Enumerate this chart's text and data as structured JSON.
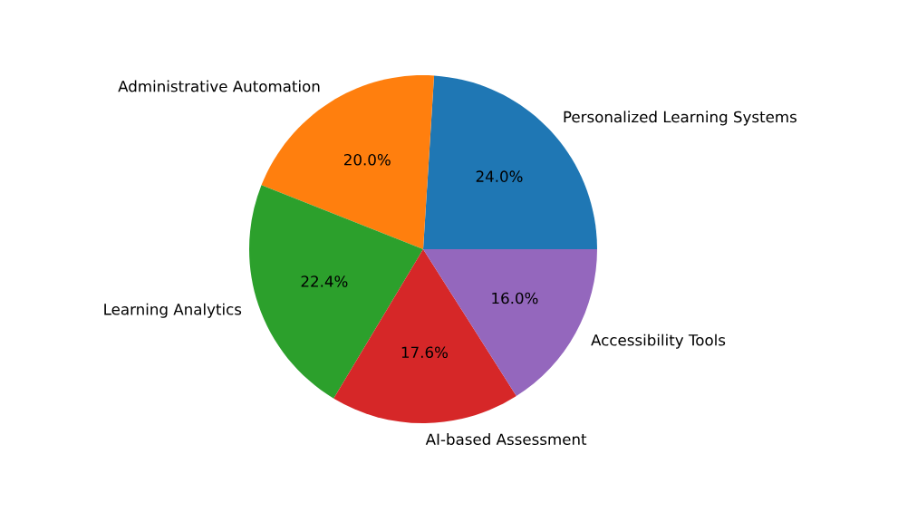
{
  "chart_data": {
    "type": "pie",
    "categories": [
      "Personalized Learning Systems",
      "Administrative Automation",
      "Learning Analytics",
      "AI-based Assessment",
      "Accessibility Tools"
    ],
    "values": [
      24.0,
      20.0,
      22.4,
      17.6,
      16.0
    ],
    "value_labels": [
      "24.0%",
      "20.0%",
      "22.4%",
      "17.6%",
      "16.0%"
    ],
    "colors": [
      "#1f77b4",
      "#ff7f0e",
      "#2ca02c",
      "#d62728",
      "#9467bd"
    ]
  }
}
